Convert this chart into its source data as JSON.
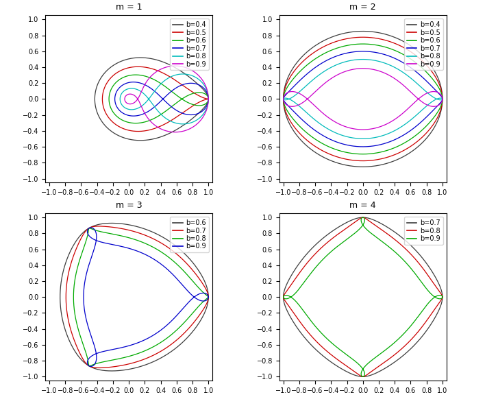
{
  "panels": [
    {
      "m": 1,
      "title": "m = 1",
      "b_values": [
        0.4,
        0.5,
        0.6,
        0.7,
        0.8,
        0.9
      ],
      "colors": [
        "#3d3d3d",
        "#cc0000",
        "#00aa00",
        "#0000cc",
        "#00bbbb",
        "#cc00cc"
      ],
      "legend_labels": [
        "b=0.4",
        "b=0.5",
        "b=0.6",
        "b=0.7",
        "b=0.8",
        "b=0.9"
      ]
    },
    {
      "m": 2,
      "title": "m = 2",
      "b_values": [
        0.4,
        0.5,
        0.6,
        0.7,
        0.8,
        0.9
      ],
      "colors": [
        "#3d3d3d",
        "#cc0000",
        "#00aa00",
        "#0000cc",
        "#00bbbb",
        "#cc00cc"
      ],
      "legend_labels": [
        "b=0.4",
        "b=0.5",
        "b=0.6",
        "b=0.7",
        "b=0.8",
        "b=0.9"
      ]
    },
    {
      "m": 3,
      "title": "m = 3",
      "b_values": [
        0.6,
        0.7,
        0.8,
        0.9
      ],
      "colors": [
        "#3d3d3d",
        "#cc0000",
        "#00aa00",
        "#0000cc"
      ],
      "legend_labels": [
        "b=0.6",
        "b=0.7",
        "b=0.8",
        "b=0.9"
      ]
    },
    {
      "m": 4,
      "title": "m = 4",
      "b_values": [
        0.7,
        0.8,
        0.9
      ],
      "colors": [
        "#3d3d3d",
        "#cc0000",
        "#00aa00"
      ],
      "legend_labels": [
        "b=0.7",
        "b=0.8",
        "b=0.9"
      ]
    }
  ],
  "figsize": [
    7.08,
    5.79
  ],
  "dpi": 100,
  "xlim": [
    -1.05,
    1.05
  ],
  "ylim": [
    -1.05,
    1.05
  ],
  "xticks": [
    -1,
    -0.8,
    -0.6,
    -0.4,
    -0.2,
    0,
    0.2,
    0.4,
    0.6,
    0.8,
    1
  ],
  "yticks": [
    -1,
    -0.8,
    -0.6,
    -0.4,
    -0.2,
    0,
    0.2,
    0.4,
    0.6,
    0.8,
    1
  ],
  "linewidth": 0.9,
  "tick_fontsize": 7,
  "title_fontsize": 9,
  "legend_fontsize": 7,
  "N_points": 4000,
  "K_harmonics": 50
}
